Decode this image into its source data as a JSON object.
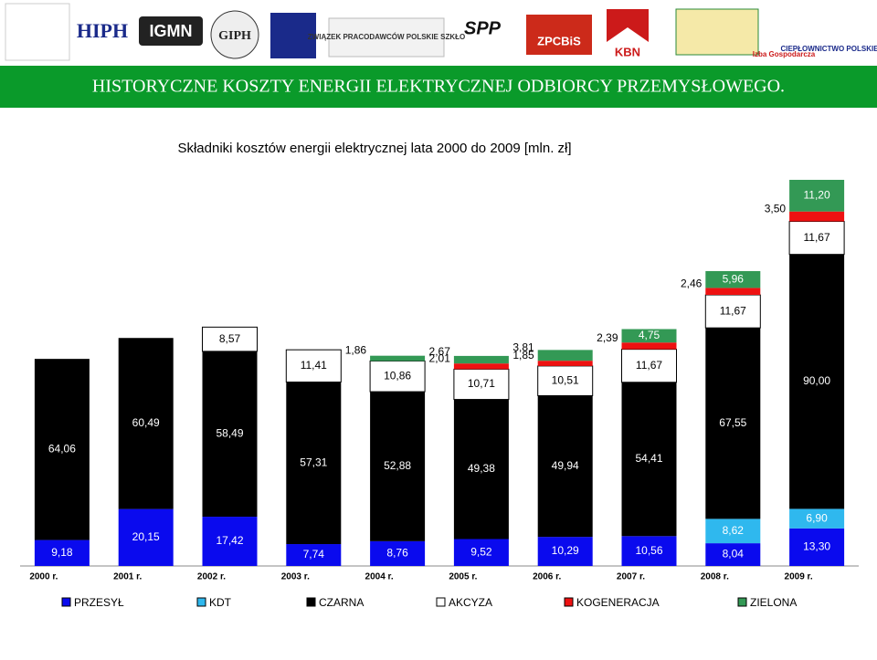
{
  "header": {
    "logos": [
      "HIPH",
      "IGMN",
      "GIPH",
      "ZWIĄZEK PRACODAWCÓW POLSKIE SZKŁO",
      "SPP",
      "ZPCBiS",
      "KBN",
      "Izba Gospodarcza",
      "CIEPŁOWNICTWO POLSKIE"
    ],
    "banner": "HISTORYCZNE KOSZTY ENERGII ELEKTRYCZNEJ ODBIORCY PRZEMYSŁOWEGO."
  },
  "chart_data": {
    "type": "stacked_bar",
    "title": "Składniki kosztów energii elektrycznej lata 2000 do 2009 [mln. zł]",
    "categories": [
      "2000 r.",
      "2001 r.",
      "2002 r.",
      "2003 r.",
      "2004 r.",
      "2005 r.",
      "2006 r.",
      "2007 r.",
      "2008 r.",
      "2009 r."
    ],
    "series": [
      {
        "name": "PRZESYŁ",
        "color": "#0a0aee",
        "values": [
          9.18,
          20.15,
          17.42,
          7.74,
          8.76,
          9.52,
          10.29,
          10.56,
          8.04,
          13.3
        ],
        "value_labels": [
          "9,18",
          "20,15",
          "17,42",
          "7,74",
          "8,76",
          "9,52",
          "10,29",
          "10,56",
          "8,04",
          "13,30"
        ]
      },
      {
        "name": "KDT",
        "color": "#2fb8ee",
        "values": [
          null,
          null,
          null,
          null,
          null,
          null,
          null,
          null,
          8.62,
          6.9
        ],
        "value_labels": [
          null,
          null,
          null,
          null,
          null,
          null,
          null,
          null,
          "8,62",
          "6,90"
        ]
      },
      {
        "name": "CZARNA",
        "color": "#000000",
        "values": [
          64.06,
          60.49,
          58.49,
          57.31,
          52.88,
          49.38,
          49.94,
          54.41,
          67.55,
          90.0
        ],
        "value_labels": [
          "64,06",
          "60,49",
          "58,49",
          "57,31",
          "52,88",
          "49,38",
          "49,94",
          "54,41",
          "67,55",
          "90,00"
        ]
      },
      {
        "name": "AKCYZA",
        "color": "#ffffff",
        "values": [
          null,
          null,
          8.57,
          11.41,
          10.86,
          10.71,
          10.51,
          11.67,
          11.67,
          11.67
        ],
        "value_labels": [
          null,
          null,
          "8,57",
          "11,41",
          "10,86",
          "10,71",
          "10,51",
          "11,67",
          "11,67",
          "11,67"
        ]
      },
      {
        "name": "KOGENERACJA",
        "color": "#ee1111",
        "values": [
          null,
          null,
          null,
          null,
          null,
          2.01,
          1.85,
          2.39,
          2.46,
          3.5
        ],
        "value_labels": [
          null,
          null,
          null,
          null,
          null,
          "2,01",
          "1,85",
          "2,39",
          "2,46",
          "3,50"
        ]
      },
      {
        "name": "ZIELONA",
        "color": "#339955",
        "values": [
          null,
          null,
          null,
          null,
          1.86,
          2.67,
          3.81,
          4.75,
          5.96,
          11.2
        ],
        "value_labels": [
          null,
          null,
          null,
          null,
          "1,86",
          "2,67",
          "3,81",
          "4,75",
          "5,96",
          "11,20"
        ]
      }
    ]
  }
}
